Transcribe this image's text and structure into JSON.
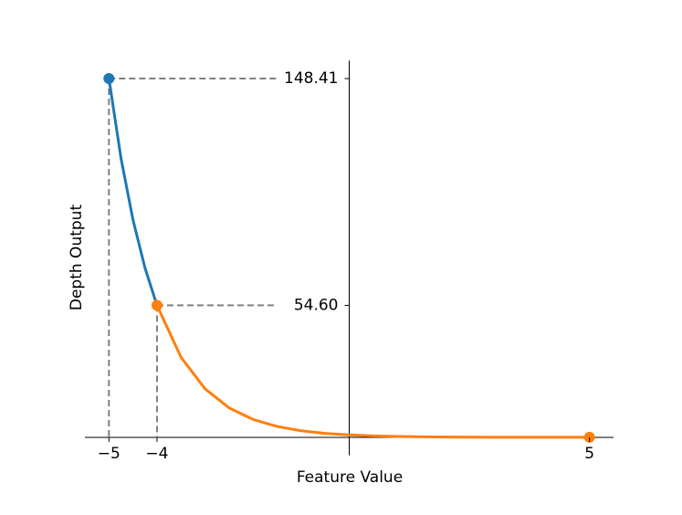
{
  "chart_data": {
    "type": "line",
    "x_label": "Feature Value",
    "y_label": "Depth Output",
    "series": [
      {
        "color": "#1f77b4",
        "x": [
          -5,
          -4.75,
          -4.5,
          -4.25,
          -4
        ],
        "values": [
          148.41,
          115.58,
          90.02,
          70.11,
          54.6
        ]
      },
      {
        "color": "#ff7f0e",
        "x": [
          -4,
          -3.5,
          -3,
          -2.5,
          -2,
          -1.5,
          -1,
          -0.5,
          0,
          0.5,
          1,
          1.5,
          2,
          2.5,
          3,
          3.5,
          4,
          4.5,
          5
        ],
        "values": [
          54.6,
          33.12,
          20.09,
          12.18,
          7.39,
          4.48,
          2.72,
          1.65,
          1.0,
          0.61,
          0.37,
          0.22,
          0.14,
          0.08,
          0.05,
          0.03,
          0.02,
          0.01,
          0.01
        ]
      }
    ],
    "points": {
      "x": [
        -5,
        -4,
        5
      ],
      "values": [
        148.41,
        54.6,
        0.01
      ],
      "colors": [
        "#1f77b4",
        "#ff7f0e",
        "#ff7f0e"
      ]
    },
    "xlim": [
      -5.5,
      5.5
    ],
    "ylim": [
      -7.42,
      155.83
    ],
    "xticks": [
      {
        "value": -5,
        "label": "−5"
      },
      {
        "value": -4,
        "label": "−4"
      },
      5
    ],
    "yticks": [
      148.41,
      {
        "value": 54.6,
        "label": "54.60"
      }
    ],
    "guide_color": "#808080"
  }
}
